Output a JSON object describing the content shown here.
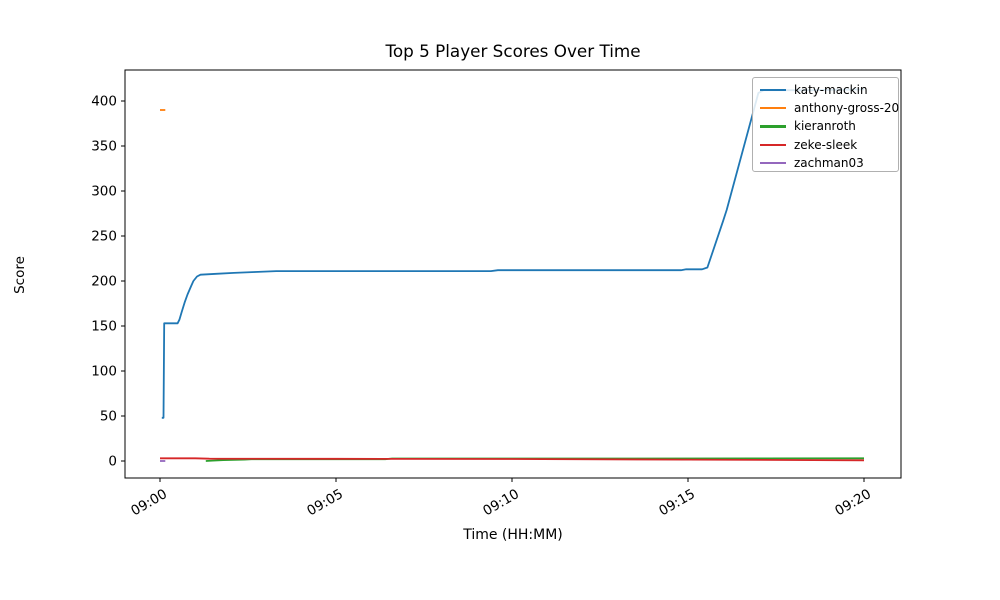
{
  "chart_data": {
    "type": "line",
    "title": "Top 5 Player Scores Over Time",
    "xlabel": "Time (HH:MM)",
    "ylabel": "Score",
    "x_axis": {
      "unit": "minutes_after_09:00",
      "xlim": [
        -1.0,
        21.1
      ],
      "ticks": [
        {
          "label": "09:00",
          "t": 0
        },
        {
          "label": "09:05",
          "t": 5
        },
        {
          "label": "09:10",
          "t": 10
        },
        {
          "label": "09:15",
          "t": 15
        },
        {
          "label": "09:20",
          "t": 20
        }
      ]
    },
    "y_axis": {
      "ylim": [
        -21,
        433
      ],
      "ticks": [
        0,
        50,
        100,
        150,
        200,
        250,
        300,
        350,
        400
      ],
      "grid": false
    },
    "legend": {
      "position": "upper right",
      "frame": true
    },
    "series": [
      {
        "name": "katy-mackin",
        "color": "#1f77b4",
        "points": [
          [
            0.05,
            48
          ],
          [
            0.1,
            48
          ],
          [
            0.12,
            153
          ],
          [
            0.5,
            153
          ],
          [
            0.55,
            157
          ],
          [
            0.62,
            166
          ],
          [
            0.7,
            176
          ],
          [
            0.78,
            185
          ],
          [
            0.88,
            194
          ],
          [
            0.95,
            200
          ],
          [
            1.05,
            205
          ],
          [
            1.15,
            207
          ],
          [
            1.6,
            208
          ],
          [
            2.1,
            209
          ],
          [
            2.7,
            210
          ],
          [
            3.3,
            211
          ],
          [
            9.4,
            211
          ],
          [
            9.6,
            212
          ],
          [
            14.8,
            212
          ],
          [
            14.95,
            213
          ],
          [
            15.4,
            213
          ],
          [
            15.55,
            215
          ],
          [
            16.0,
            267
          ],
          [
            16.1,
            279
          ],
          [
            17.0,
            409
          ],
          [
            17.15,
            412
          ],
          [
            18.5,
            412
          ],
          [
            20,
            413
          ]
        ]
      },
      {
        "name": "anthony-gross-20",
        "color": "#ff7f0e",
        "points": [
          [
            0.0,
            390
          ],
          [
            0.15,
            390
          ]
        ]
      },
      {
        "name": "kieranroth",
        "color": "#2ca02c",
        "points": [
          [
            1.3,
            0
          ],
          [
            1.5,
            0.5
          ],
          [
            1.8,
            1
          ],
          [
            2.4,
            1.5
          ],
          [
            2.6,
            2
          ],
          [
            6.4,
            2
          ],
          [
            6.6,
            2.8
          ],
          [
            13,
            2.8
          ],
          [
            20,
            3
          ]
        ]
      },
      {
        "name": "zeke-sleek",
        "color": "#d62728",
        "points": [
          [
            0,
            3
          ],
          [
            1,
            3
          ],
          [
            1.4,
            2.6
          ],
          [
            5,
            2.4
          ],
          [
            10,
            2.2
          ],
          [
            15,
            1.5
          ],
          [
            20,
            0.8
          ]
        ]
      },
      {
        "name": "zachman03",
        "color": "#9467bd",
        "points": [
          [
            0,
            0
          ],
          [
            0.15,
            0
          ]
        ]
      }
    ]
  }
}
